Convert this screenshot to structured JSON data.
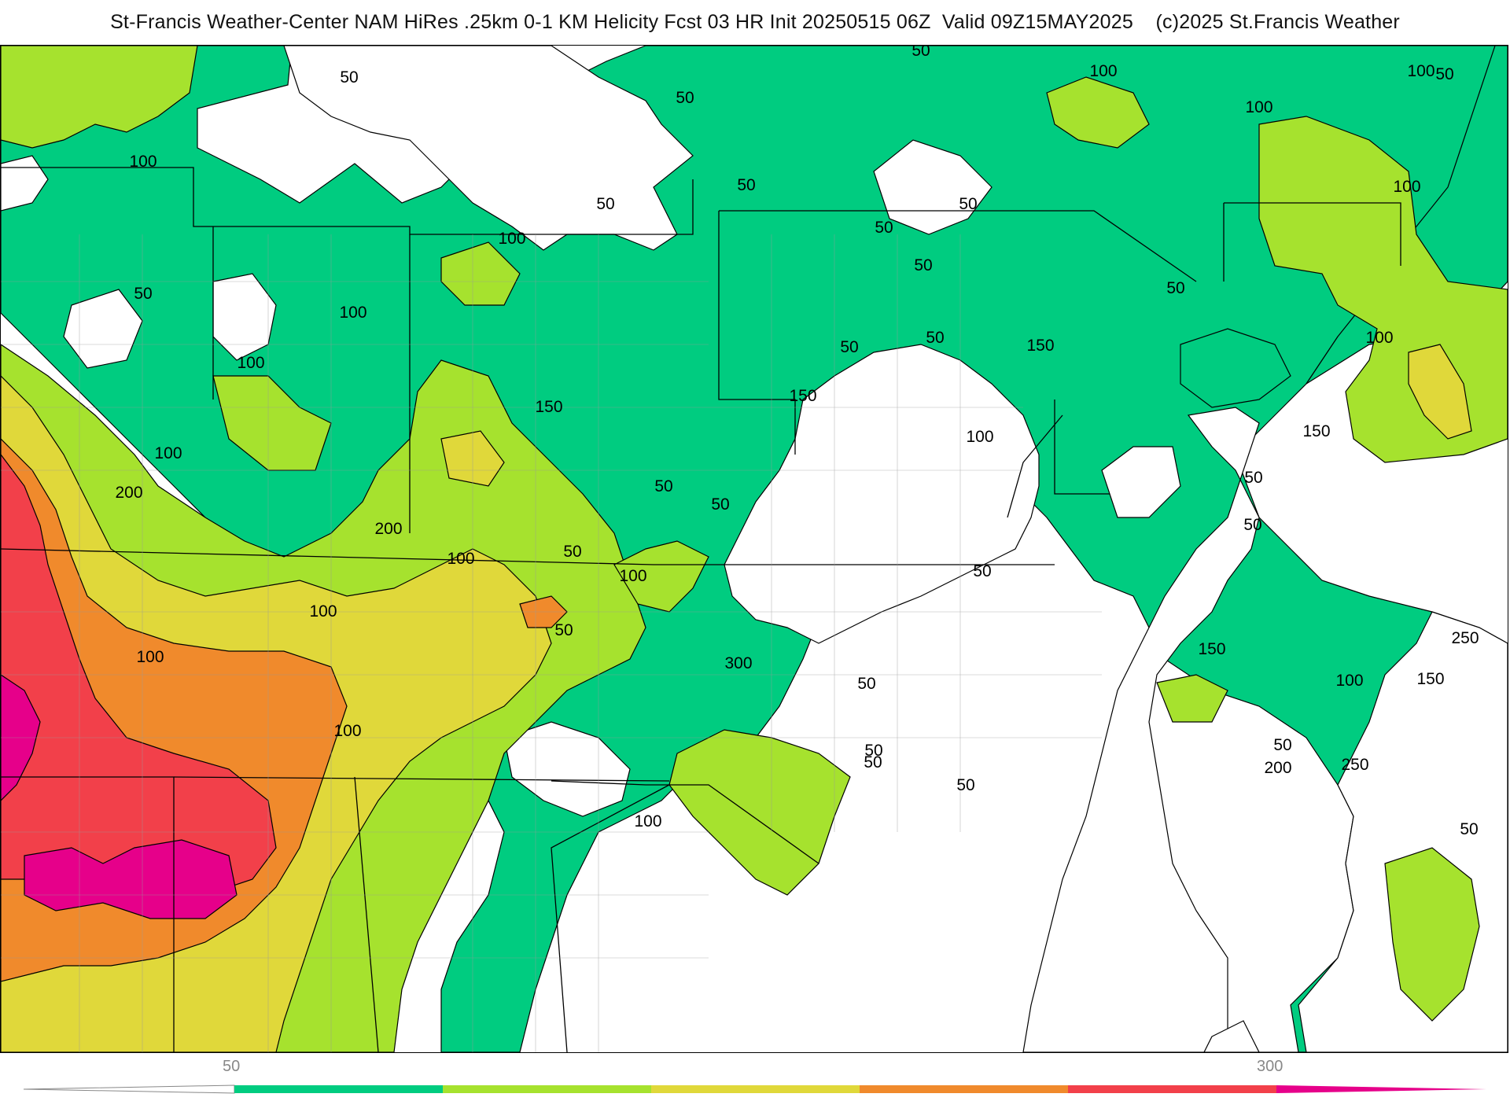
{
  "header": {
    "title": "St-Francis Weather-Center NAM HiRes .25km 0-1 KM Helicity Fcst 03 HR Init 20250515 06Z  Valid 09Z15MAY2025    (c)2025 St.Francis Weather"
  },
  "map": {
    "variable": "0-1 KM Helicity",
    "contour_interval": 50,
    "contour_labels": [
      {
        "id": "l1",
        "text": "50"
      },
      {
        "id": "l2",
        "text": "100"
      },
      {
        "id": "l3",
        "text": "50"
      },
      {
        "id": "l4",
        "text": "100"
      },
      {
        "id": "l5",
        "text": "100"
      },
      {
        "id": "l6",
        "text": "50"
      },
      {
        "id": "l7",
        "text": "50"
      },
      {
        "id": "l8",
        "text": "100"
      },
      {
        "id": "l9",
        "text": "50"
      },
      {
        "id": "l10",
        "text": "50"
      },
      {
        "id": "l11",
        "text": "50"
      },
      {
        "id": "l12",
        "text": "100"
      },
      {
        "id": "l13",
        "text": "100"
      },
      {
        "id": "l14",
        "text": "50"
      },
      {
        "id": "l15",
        "text": "50"
      },
      {
        "id": "l16",
        "text": "50"
      },
      {
        "id": "l17",
        "text": "50"
      },
      {
        "id": "l18",
        "text": "50"
      },
      {
        "id": "l19",
        "text": "50"
      },
      {
        "id": "l20",
        "text": "100"
      },
      {
        "id": "l21",
        "text": "100"
      },
      {
        "id": "l22",
        "text": "100"
      },
      {
        "id": "l23",
        "text": "150"
      },
      {
        "id": "l24",
        "text": "150"
      },
      {
        "id": "l25",
        "text": "150"
      },
      {
        "id": "l26",
        "text": "150"
      },
      {
        "id": "l27",
        "text": "100"
      },
      {
        "id": "l28",
        "text": "100"
      },
      {
        "id": "l29",
        "text": "50"
      },
      {
        "id": "l30",
        "text": "50"
      },
      {
        "id": "l31",
        "text": "50"
      },
      {
        "id": "l32",
        "text": "200"
      },
      {
        "id": "l33",
        "text": "200"
      },
      {
        "id": "l34",
        "text": "100"
      },
      {
        "id": "l35",
        "text": "50"
      },
      {
        "id": "l36",
        "text": "50"
      },
      {
        "id": "l37",
        "text": "100"
      },
      {
        "id": "l38",
        "text": "50"
      },
      {
        "id": "l39",
        "text": "250"
      },
      {
        "id": "l40",
        "text": "150"
      },
      {
        "id": "l41",
        "text": "100"
      },
      {
        "id": "l42",
        "text": "100"
      },
      {
        "id": "l43",
        "text": "100"
      },
      {
        "id": "l44",
        "text": "50"
      },
      {
        "id": "l45",
        "text": "300"
      },
      {
        "id": "l46",
        "text": "150"
      },
      {
        "id": "l47",
        "text": "50"
      },
      {
        "id": "l48",
        "text": "50"
      },
      {
        "id": "l49",
        "text": "250"
      },
      {
        "id": "l50",
        "text": "200"
      },
      {
        "id": "l51",
        "text": "100"
      },
      {
        "id": "l52",
        "text": "50"
      },
      {
        "id": "l53",
        "text": "100"
      },
      {
        "id": "l54",
        "text": "50"
      },
      {
        "id": "l55",
        "text": "50"
      },
      {
        "id": "l56",
        "text": "50"
      }
    ],
    "colors": {
      "band_50_100": "#00cc80",
      "band_100_150": "#a6e22e",
      "band_150_200": "#e0d83a",
      "band_200_250": "#f08a2c",
      "band_250_300": "#f2404a",
      "band_300_plus": "#e6008a",
      "below_50": "#ffffff",
      "boundary": "#000000",
      "county": "#9a9a9a"
    }
  },
  "colorbar": {
    "label_low": "50",
    "label_high": "300",
    "segments": [
      "#00cc80",
      "#a6e22e",
      "#e0d83a",
      "#f08a2c",
      "#f2404a",
      "#e6008a"
    ]
  }
}
